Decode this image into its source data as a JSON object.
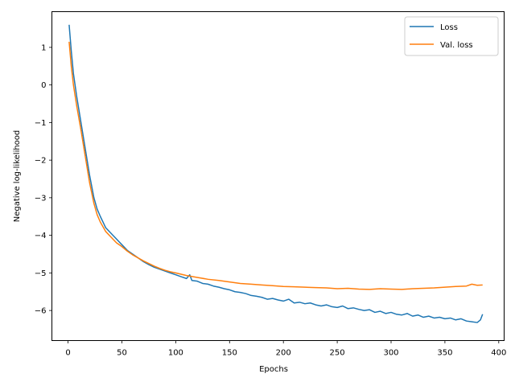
{
  "chart_data": {
    "type": "line",
    "title": "",
    "xlabel": "Epochs",
    "ylabel": "Negative log-likelihood",
    "xlim": [
      -15,
      405
    ],
    "ylim": [
      -6.8,
      1.95
    ],
    "xticks": [
      0,
      50,
      100,
      150,
      200,
      250,
      300,
      350,
      400
    ],
    "yticks": [
      -6,
      -5,
      -4,
      -3,
      -2,
      -1,
      0,
      1
    ],
    "grid": false,
    "legend_position": "upper right",
    "series": [
      {
        "name": "Loss",
        "color": "#1f77b4",
        "x": [
          1,
          3,
          5,
          8,
          12,
          16,
          20,
          24,
          27,
          30,
          35,
          40,
          45,
          50,
          55,
          60,
          65,
          70,
          75,
          80,
          85,
          90,
          95,
          100,
          105,
          110,
          113,
          115,
          120,
          125,
          130,
          135,
          140,
          145,
          150,
          155,
          160,
          165,
          170,
          175,
          180,
          185,
          190,
          195,
          200,
          205,
          210,
          215,
          220,
          225,
          230,
          235,
          240,
          245,
          250,
          255,
          260,
          265,
          270,
          275,
          280,
          285,
          290,
          295,
          300,
          305,
          310,
          315,
          320,
          325,
          330,
          335,
          340,
          345,
          350,
          355,
          360,
          365,
          370,
          375,
          380,
          383,
          385
        ],
        "values": [
          1.6,
          0.9,
          0.3,
          -0.3,
          -1.0,
          -1.7,
          -2.4,
          -3.0,
          -3.3,
          -3.5,
          -3.8,
          -3.95,
          -4.1,
          -4.25,
          -4.4,
          -4.5,
          -4.6,
          -4.7,
          -4.78,
          -4.85,
          -4.9,
          -4.95,
          -5.0,
          -5.05,
          -5.1,
          -5.15,
          -5.05,
          -5.2,
          -5.22,
          -5.28,
          -5.3,
          -5.35,
          -5.38,
          -5.42,
          -5.45,
          -5.5,
          -5.52,
          -5.55,
          -5.6,
          -5.62,
          -5.65,
          -5.7,
          -5.68,
          -5.72,
          -5.75,
          -5.7,
          -5.8,
          -5.78,
          -5.82,
          -5.8,
          -5.85,
          -5.88,
          -5.85,
          -5.9,
          -5.92,
          -5.88,
          -5.95,
          -5.93,
          -5.97,
          -6.0,
          -5.98,
          -6.05,
          -6.02,
          -6.08,
          -6.05,
          -6.1,
          -6.12,
          -6.08,
          -6.15,
          -6.12,
          -6.18,
          -6.15,
          -6.2,
          -6.18,
          -6.22,
          -6.2,
          -6.25,
          -6.22,
          -6.28,
          -6.3,
          -6.32,
          -6.25,
          -6.1
        ]
      },
      {
        "name": "Val. loss",
        "color": "#ff7f0e",
        "x": [
          1,
          3,
          5,
          8,
          12,
          16,
          20,
          24,
          27,
          30,
          35,
          40,
          45,
          50,
          55,
          60,
          65,
          70,
          75,
          80,
          85,
          90,
          95,
          100,
          110,
          120,
          130,
          140,
          150,
          160,
          170,
          180,
          190,
          200,
          210,
          220,
          230,
          240,
          250,
          260,
          270,
          280,
          290,
          300,
          310,
          320,
          330,
          340,
          350,
          360,
          370,
          375,
          380,
          385
        ],
        "values": [
          1.15,
          0.5,
          0.0,
          -0.55,
          -1.2,
          -1.9,
          -2.6,
          -3.15,
          -3.45,
          -3.65,
          -3.9,
          -4.05,
          -4.2,
          -4.3,
          -4.42,
          -4.52,
          -4.6,
          -4.68,
          -4.75,
          -4.82,
          -4.88,
          -4.93,
          -4.97,
          -5.0,
          -5.07,
          -5.12,
          -5.17,
          -5.2,
          -5.24,
          -5.28,
          -5.3,
          -5.32,
          -5.34,
          -5.36,
          -5.37,
          -5.38,
          -5.39,
          -5.4,
          -5.42,
          -5.41,
          -5.43,
          -5.44,
          -5.42,
          -5.43,
          -5.44,
          -5.42,
          -5.41,
          -5.4,
          -5.38,
          -5.36,
          -5.35,
          -5.3,
          -5.33,
          -5.32
        ]
      }
    ]
  }
}
